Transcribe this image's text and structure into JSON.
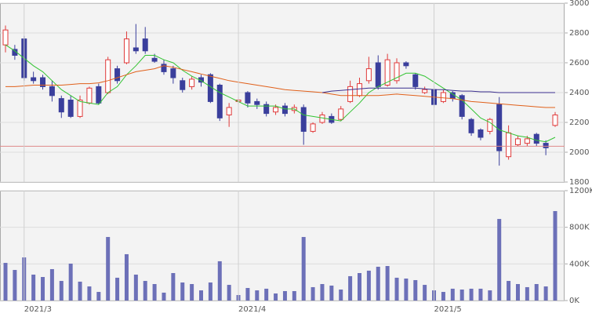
{
  "chart_data": [
    {
      "type": "candlestick",
      "categories": [
        null,
        null,
        "2021/3",
        null,
        null,
        null,
        null,
        null,
        null,
        null,
        null,
        null,
        null,
        null,
        null,
        null,
        null,
        null,
        null,
        null,
        null,
        null,
        null,
        null,
        null,
        "2021/4",
        null,
        null,
        null,
        null,
        null,
        null,
        null,
        null,
        null,
        null,
        null,
        null,
        null,
        null,
        null,
        null,
        null,
        null,
        null,
        null,
        "2021/5",
        null,
        null,
        null,
        null,
        null,
        null,
        null,
        null,
        null,
        null,
        null,
        null,
        null
      ],
      "open": [
        2720,
        2690,
        2760,
        2500,
        2500,
        2440,
        2360,
        2350,
        2240,
        2330,
        2440,
        2400,
        2560,
        2600,
        2700,
        2760,
        2630,
        2590,
        2560,
        2480,
        2440,
        2500,
        2520,
        2450,
        2250,
        2340,
        2400,
        2340,
        2320,
        2270,
        2310,
        2280,
        2300,
        2140,
        2200,
        2240,
        2220,
        2340,
        2380,
        2480,
        2600,
        2450,
        2480,
        2600,
        2520,
        2400,
        2420,
        2340,
        2400,
        2380,
        2220,
        2150,
        2140,
        2320,
        1970,
        2050,
        2060,
        2120,
        2060,
        2180
      ],
      "high": [
        2850,
        2720,
        2780,
        2540,
        2520,
        2480,
        2380,
        2380,
        2380,
        2440,
        2460,
        2640,
        2580,
        2810,
        2860,
        2840,
        2660,
        2620,
        2580,
        2500,
        2510,
        2520,
        2530,
        2460,
        2330,
        2370,
        2410,
        2360,
        2340,
        2320,
        2330,
        2320,
        2320,
        2200,
        2270,
        2260,
        2310,
        2480,
        2500,
        2640,
        2650,
        2660,
        2630,
        2610,
        2530,
        2440,
        2440,
        2420,
        2410,
        2390,
        2230,
        2160,
        2230,
        2370,
        2180,
        2110,
        2110,
        2130,
        2080,
        2270
      ],
      "low": [
        2670,
        2620,
        2480,
        2460,
        2420,
        2340,
        2230,
        2230,
        2230,
        2320,
        2320,
        2390,
        2460,
        2590,
        2660,
        2660,
        2600,
        2520,
        2460,
        2400,
        2420,
        2440,
        2330,
        2210,
        2170,
        2320,
        2300,
        2290,
        2240,
        2250,
        2240,
        2260,
        2050,
        2130,
        2190,
        2190,
        2210,
        2330,
        2370,
        2460,
        2420,
        2440,
        2460,
        2560,
        2420,
        2390,
        2300,
        2330,
        2340,
        2220,
        2110,
        2080,
        2120,
        1910,
        1950,
        2040,
        2040,
        2040,
        1980,
        2170
      ],
      "close": [
        2820,
        2650,
        2500,
        2480,
        2440,
        2380,
        2270,
        2240,
        2350,
        2430,
        2330,
        2620,
        2480,
        2760,
        2680,
        2680,
        2610,
        2540,
        2500,
        2420,
        2490,
        2470,
        2340,
        2230,
        2300,
        2350,
        2330,
        2320,
        2260,
        2300,
        2260,
        2300,
        2140,
        2190,
        2250,
        2200,
        2290,
        2440,
        2460,
        2560,
        2440,
        2620,
        2600,
        2580,
        2440,
        2420,
        2320,
        2400,
        2360,
        2240,
        2130,
        2100,
        2220,
        2010,
        2130,
        2090,
        2090,
        2060,
        2030,
        2250
      ],
      "up_color": "#e03a3a",
      "down_color": "#3a3f9c",
      "series": [
        {
          "color": "#33c433",
          "values": [
            2720,
            2680,
            2630,
            2580,
            2540,
            2480,
            2420,
            2380,
            2340,
            2330,
            2320,
            2400,
            2440,
            2520,
            2580,
            2650,
            2650,
            2620,
            2600,
            2550,
            2510,
            2480,
            2440,
            2400,
            2370,
            2340,
            2310,
            2310,
            2310,
            2310,
            2290,
            2290,
            2250,
            2240,
            2230,
            2220,
            2210,
            2270,
            2330,
            2400,
            2440,
            2470,
            2500,
            2530,
            2530,
            2510,
            2470,
            2430,
            2390,
            2350,
            2290,
            2230,
            2200,
            2150,
            2130,
            2110,
            2100,
            2080,
            2070,
            2100
          ]
        },
        {
          "color": "#e0601a",
          "values": [
            2440,
            2440,
            2445,
            2450,
            2450,
            2450,
            2450,
            2455,
            2460,
            2460,
            2465,
            2480,
            2500,
            2520,
            2540,
            2550,
            2560,
            2580,
            2570,
            2555,
            2540,
            2525,
            2510,
            2495,
            2480,
            2470,
            2460,
            2450,
            2440,
            2430,
            2420,
            2415,
            2410,
            2405,
            2400,
            2390,
            2380,
            2380,
            2380,
            2380,
            2380,
            2385,
            2390,
            2385,
            2380,
            2375,
            2370,
            2365,
            2360,
            2350,
            2340,
            2335,
            2330,
            2325,
            2320,
            2315,
            2310,
            2305,
            2300,
            2300
          ]
        },
        {
          "color": "#3b2f8f",
          "values": [
            null,
            null,
            null,
            null,
            null,
            null,
            null,
            null,
            null,
            null,
            null,
            null,
            null,
            null,
            null,
            null,
            null,
            null,
            null,
            null,
            null,
            null,
            null,
            null,
            null,
            null,
            null,
            null,
            null,
            null,
            null,
            null,
            null,
            null,
            2400,
            2410,
            2415,
            2420,
            2425,
            2430,
            2430,
            2430,
            2430,
            2430,
            2430,
            2425,
            2420,
            2420,
            2415,
            2410,
            2410,
            2405,
            2405,
            2400,
            2400,
            2400,
            2400,
            2400,
            2400,
            2400
          ]
        }
      ],
      "hline": {
        "value": 2040,
        "color": "#e08a8a"
      },
      "ylim": [
        1800,
        3000
      ],
      "yticks": [
        1800,
        2000,
        2200,
        2400,
        2600,
        2800,
        3000
      ],
      "grid": true
    },
    {
      "type": "bar",
      "color": "#6c70b8",
      "values": [
        411000,
        334000,
        471000,
        283000,
        257000,
        343000,
        214000,
        403000,
        206000,
        154000,
        94000,
        694000,
        249000,
        506000,
        283000,
        214000,
        180000,
        86000,
        300000,
        197000,
        180000,
        111000,
        197000,
        429000,
        171000,
        60000,
        137000,
        111000,
        129000,
        77000,
        103000,
        103000,
        694000,
        146000,
        180000,
        163000,
        120000,
        266000,
        300000,
        326000,
        369000,
        377000,
        249000,
        240000,
        223000,
        171000,
        111000,
        94000,
        129000,
        120000,
        129000,
        129000,
        111000,
        891000,
        214000,
        180000,
        146000,
        180000,
        154000,
        977000
      ],
      "ylim": [
        0,
        1200000
      ],
      "yticks": [
        {
          "value": 0,
          "label": "0K"
        },
        {
          "value": 400000,
          "label": "400K"
        },
        {
          "value": 800000,
          "label": "800K"
        },
        {
          "value": 1200000,
          "label": "1200K"
        }
      ],
      "grid": true
    }
  ]
}
